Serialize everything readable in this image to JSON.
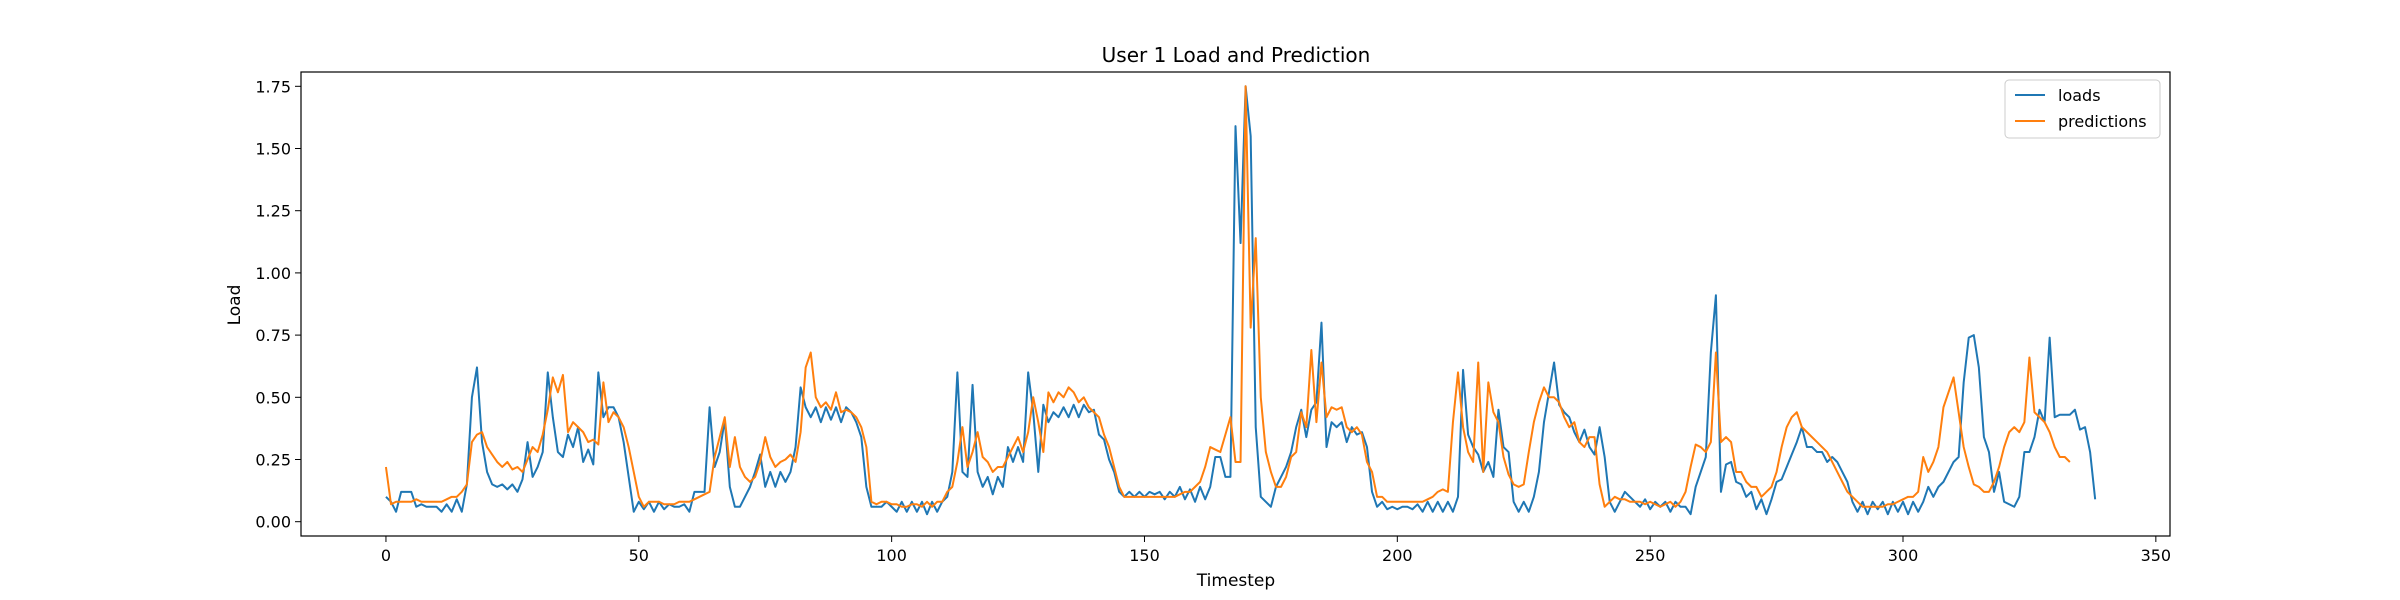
{
  "chart_data": {
    "type": "line",
    "title": "User 1 Load and Prediction",
    "xlabel": "Timestep",
    "ylabel": "Load",
    "xlim": [
      -16.8,
      352.8
    ],
    "ylim": [
      -0.0575,
      1.8075
    ],
    "xticks": [
      0,
      50,
      100,
      150,
      200,
      250,
      300,
      350
    ],
    "xtick_labels": [
      "0",
      "50",
      "100",
      "150",
      "200",
      "250",
      "300",
      "350"
    ],
    "yticks": [
      0.0,
      0.25,
      0.5,
      0.75,
      1.0,
      1.25,
      1.5,
      1.75
    ],
    "ytick_labels": [
      "0.00",
      "0.25",
      "0.50",
      "0.75",
      "1.00",
      "1.25",
      "1.50",
      "1.75"
    ],
    "grid": false,
    "legend_position": "top-right",
    "series": [
      {
        "name": "loads",
        "color": "#1f77b4",
        "values": [
          0.1,
          0.08,
          0.04,
          0.12,
          0.12,
          0.12,
          0.06,
          0.07,
          0.06,
          0.06,
          0.06,
          0.04,
          0.07,
          0.04,
          0.09,
          0.04,
          0.15,
          0.5,
          0.62,
          0.32,
          0.2,
          0.15,
          0.14,
          0.15,
          0.13,
          0.15,
          0.12,
          0.17,
          0.32,
          0.18,
          0.22,
          0.28,
          0.6,
          0.42,
          0.28,
          0.26,
          0.35,
          0.3,
          0.38,
          0.24,
          0.29,
          0.23,
          0.6,
          0.42,
          0.46,
          0.46,
          0.42,
          0.32,
          0.18,
          0.04,
          0.08,
          0.05,
          0.08,
          0.04,
          0.08,
          0.05,
          0.07,
          0.06,
          0.06,
          0.07,
          0.04,
          0.12,
          0.12,
          0.12,
          0.46,
          0.22,
          0.28,
          0.41,
          0.14,
          0.06,
          0.06,
          0.1,
          0.14,
          0.2,
          0.27,
          0.14,
          0.2,
          0.14,
          0.2,
          0.16,
          0.2,
          0.3,
          0.54,
          0.46,
          0.42,
          0.46,
          0.4,
          0.46,
          0.41,
          0.46,
          0.4,
          0.46,
          0.44,
          0.4,
          0.34,
          0.14,
          0.06,
          0.06,
          0.06,
          0.08,
          0.06,
          0.04,
          0.08,
          0.04,
          0.08,
          0.04,
          0.08,
          0.03,
          0.08,
          0.04,
          0.08,
          0.1,
          0.2,
          0.6,
          0.2,
          0.18,
          0.55,
          0.2,
          0.14,
          0.18,
          0.11,
          0.18,
          0.14,
          0.3,
          0.24,
          0.3,
          0.24,
          0.6,
          0.44,
          0.2,
          0.47,
          0.4,
          0.44,
          0.42,
          0.46,
          0.42,
          0.47,
          0.42,
          0.47,
          0.44,
          0.45,
          0.35,
          0.33,
          0.25,
          0.2,
          0.12,
          0.1,
          0.12,
          0.1,
          0.12,
          0.1,
          0.12,
          0.11,
          0.12,
          0.09,
          0.12,
          0.1,
          0.14,
          0.09,
          0.13,
          0.08,
          0.14,
          0.09,
          0.14,
          0.26,
          0.26,
          0.18,
          0.18,
          1.59,
          1.12,
          1.75,
          1.55,
          0.38,
          0.1,
          0.08,
          0.06,
          0.14,
          0.18,
          0.22,
          0.28,
          0.38,
          0.45,
          0.34,
          0.45,
          0.48,
          0.8,
          0.3,
          0.4,
          0.38,
          0.4,
          0.32,
          0.38,
          0.35,
          0.36,
          0.3,
          0.12,
          0.06,
          0.08,
          0.05,
          0.06,
          0.05,
          0.06,
          0.06,
          0.05,
          0.07,
          0.04,
          0.08,
          0.04,
          0.08,
          0.04,
          0.08,
          0.04,
          0.1,
          0.61,
          0.35,
          0.3,
          0.27,
          0.2,
          0.24,
          0.18,
          0.45,
          0.3,
          0.28,
          0.08,
          0.04,
          0.08,
          0.04,
          0.1,
          0.2,
          0.4,
          0.52,
          0.64,
          0.47,
          0.44,
          0.42,
          0.36,
          0.32,
          0.37,
          0.3,
          0.27,
          0.38,
          0.26,
          0.08,
          0.04,
          0.08,
          0.12,
          0.1,
          0.08,
          0.06,
          0.09,
          0.05,
          0.08,
          0.06,
          0.08,
          0.04,
          0.08,
          0.06,
          0.06,
          0.03,
          0.14,
          0.2,
          0.26,
          0.68,
          0.91,
          0.12,
          0.23,
          0.24,
          0.16,
          0.15,
          0.1,
          0.12,
          0.05,
          0.09,
          0.03,
          0.09,
          0.16,
          0.17,
          0.22,
          0.27,
          0.32,
          0.38,
          0.3,
          0.3,
          0.28,
          0.28,
          0.24,
          0.26,
          0.24,
          0.2,
          0.16,
          0.08,
          0.04,
          0.08,
          0.03,
          0.08,
          0.05,
          0.08,
          0.03,
          0.08,
          0.04,
          0.08,
          0.03,
          0.08,
          0.04,
          0.08,
          0.14,
          0.1,
          0.14,
          0.16,
          0.2,
          0.24,
          0.26,
          0.56,
          0.74,
          0.75,
          0.62,
          0.34,
          0.28,
          0.12,
          0.2,
          0.08,
          0.07,
          0.06,
          0.1,
          0.28,
          0.28,
          0.34,
          0.45,
          0.4,
          0.74,
          0.42,
          0.43,
          0.43,
          0.43,
          0.45,
          0.37,
          0.38,
          0.28,
          0.09
        ]
      },
      {
        "name": "predictions",
        "color": "#ff7f0e",
        "values": [
          0.22,
          0.07,
          0.08,
          0.08,
          0.08,
          0.08,
          0.09,
          0.08,
          0.08,
          0.08,
          0.08,
          0.08,
          0.09,
          0.1,
          0.1,
          0.12,
          0.15,
          0.32,
          0.35,
          0.36,
          0.3,
          0.27,
          0.24,
          0.22,
          0.24,
          0.21,
          0.22,
          0.2,
          0.25,
          0.3,
          0.28,
          0.35,
          0.45,
          0.58,
          0.52,
          0.59,
          0.36,
          0.4,
          0.38,
          0.36,
          0.32,
          0.33,
          0.31,
          0.56,
          0.4,
          0.44,
          0.42,
          0.38,
          0.3,
          0.2,
          0.1,
          0.06,
          0.08,
          0.08,
          0.08,
          0.07,
          0.07,
          0.07,
          0.08,
          0.08,
          0.08,
          0.09,
          0.1,
          0.11,
          0.12,
          0.26,
          0.34,
          0.42,
          0.22,
          0.34,
          0.22,
          0.18,
          0.16,
          0.18,
          0.24,
          0.34,
          0.26,
          0.22,
          0.24,
          0.25,
          0.27,
          0.24,
          0.36,
          0.62,
          0.68,
          0.5,
          0.46,
          0.48,
          0.45,
          0.52,
          0.44,
          0.45,
          0.44,
          0.42,
          0.38,
          0.3,
          0.08,
          0.07,
          0.08,
          0.08,
          0.07,
          0.07,
          0.06,
          0.06,
          0.07,
          0.07,
          0.06,
          0.08,
          0.06,
          0.08,
          0.08,
          0.12,
          0.14,
          0.24,
          0.38,
          0.22,
          0.28,
          0.36,
          0.26,
          0.24,
          0.2,
          0.22,
          0.22,
          0.26,
          0.3,
          0.34,
          0.28,
          0.36,
          0.5,
          0.4,
          0.28,
          0.52,
          0.48,
          0.52,
          0.5,
          0.54,
          0.52,
          0.48,
          0.5,
          0.46,
          0.44,
          0.42,
          0.35,
          0.3,
          0.22,
          0.14,
          0.1,
          0.1,
          0.1,
          0.1,
          0.1,
          0.1,
          0.1,
          0.1,
          0.1,
          0.1,
          0.1,
          0.11,
          0.12,
          0.12,
          0.14,
          0.16,
          0.22,
          0.3,
          0.29,
          0.28,
          0.35,
          0.42,
          0.24,
          0.24,
          1.75,
          0.78,
          1.14,
          0.5,
          0.28,
          0.2,
          0.14,
          0.14,
          0.18,
          0.26,
          0.28,
          0.44,
          0.38,
          0.69,
          0.4,
          0.64,
          0.42,
          0.46,
          0.45,
          0.46,
          0.38,
          0.36,
          0.38,
          0.35,
          0.24,
          0.2,
          0.1,
          0.1,
          0.08,
          0.08,
          0.08,
          0.08,
          0.08,
          0.08,
          0.08,
          0.08,
          0.09,
          0.1,
          0.12,
          0.13,
          0.12,
          0.4,
          0.6,
          0.38,
          0.28,
          0.24,
          0.64,
          0.2,
          0.56,
          0.44,
          0.4,
          0.26,
          0.19,
          0.15,
          0.14,
          0.15,
          0.28,
          0.4,
          0.48,
          0.54,
          0.5,
          0.5,
          0.48,
          0.42,
          0.38,
          0.4,
          0.32,
          0.3,
          0.34,
          0.34,
          0.15,
          0.06,
          0.08,
          0.1,
          0.09,
          0.09,
          0.08,
          0.08,
          0.08,
          0.07,
          0.08,
          0.07,
          0.06,
          0.07,
          0.08,
          0.06,
          0.08,
          0.12,
          0.22,
          0.31,
          0.3,
          0.28,
          0.32,
          0.68,
          0.32,
          0.34,
          0.32,
          0.2,
          0.2,
          0.16,
          0.14,
          0.14,
          0.1,
          0.12,
          0.14,
          0.2,
          0.3,
          0.38,
          0.42,
          0.44,
          0.38,
          0.36,
          0.34,
          0.32,
          0.3,
          0.28,
          0.24,
          0.2,
          0.16,
          0.12,
          0.1,
          0.08,
          0.06,
          0.06,
          0.06,
          0.06,
          0.06,
          0.07,
          0.07,
          0.08,
          0.09,
          0.1,
          0.1,
          0.12,
          0.26,
          0.2,
          0.24,
          0.3,
          0.46,
          0.52,
          0.58,
          0.44,
          0.3,
          0.22,
          0.15,
          0.14,
          0.12,
          0.12,
          0.16,
          0.22,
          0.3,
          0.36,
          0.38,
          0.36,
          0.4,
          0.66,
          0.44,
          0.42,
          0.4,
          0.36,
          0.3,
          0.26,
          0.26,
          0.24
        ]
      }
    ]
  }
}
